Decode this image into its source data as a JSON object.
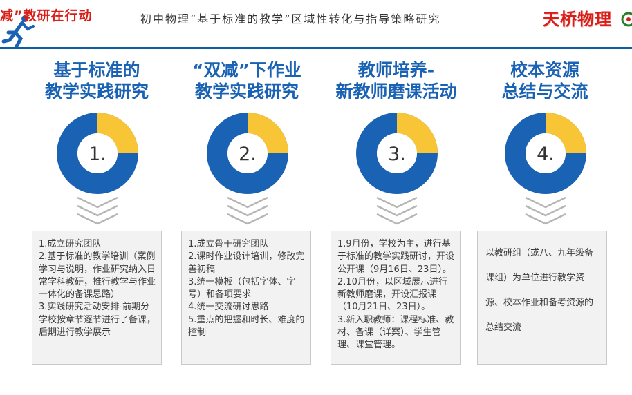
{
  "header": {
    "left_title": "减”教研在行动",
    "center_title": "初中物理“基于标准的教学”区域性转化与指导策略研究",
    "right_title": "天桥物理"
  },
  "colors": {
    "blue": "#1a62b3",
    "yellow": "#f7c536",
    "red": "#d91e18",
    "line": "#0d5e9c"
  },
  "columns": [
    {
      "title_line1": "基于标准的",
      "title_line2": "教学实践研究",
      "number": "1.",
      "items": [
        "1.成立研究团队",
        "2.基于标准的教学培训（案例学习与说明，作业研究纳入日常学科教研，推行教学与作业一体化的备课思路）",
        "3.实践研究活动安排-前期分学校按章节逐节进行了备课，后期进行教学展示"
      ]
    },
    {
      "title_line1": "“双减”下作业",
      "title_line2": "教学实践研究",
      "number": "2.",
      "items": [
        "1.成立骨干研究团队",
        "2.课时作业设计培训，修改完善初稿",
        "3.统一模板（包括字体、字号）和各项要求",
        "4.统一交流研讨思路",
        "5.重点的把握和时长、难度的控制"
      ]
    },
    {
      "title_line1": "教师培养-",
      "title_line2": "新教师磨课活动",
      "number": "3.",
      "items": [
        "1.9月份，学校为主，进行基于标准的教学实践研讨，开设公开课（9月16日、23日）。",
        "2.10月份，以区域展示进行新教师磨课，开设汇报课（10月21日、23日）。",
        "3.新入职教师：课程标准、教材、备课（详案）、学生管理、课堂管理。"
      ]
    },
    {
      "title_line1": "校本资源",
      "title_line2": "总结与交流",
      "number": "4.",
      "items": [
        "以教研组（或八、九年级备课组）为单位进行教学资源、校本作业和备考资源的总结交流"
      ]
    }
  ]
}
